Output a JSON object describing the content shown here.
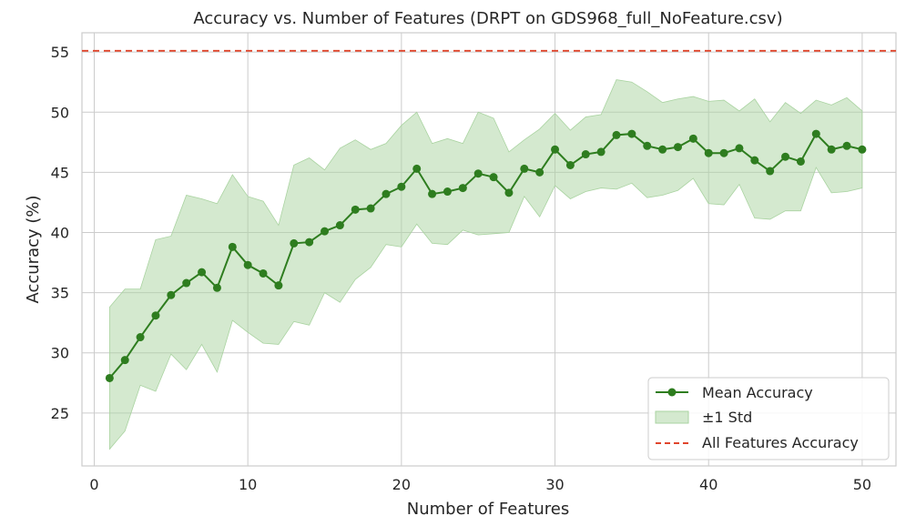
{
  "chart_data": {
    "type": "line",
    "title": "Accuracy vs. Number of Features (DRPT on GDS968_full_NoFeature.csv)",
    "xlabel": "Number of Features",
    "ylabel": "Accuracy (%)",
    "xlim": [
      -0.8,
      52.2
    ],
    "ylim": [
      20.6,
      56.6
    ],
    "x_ticks": [
      0,
      10,
      20,
      30,
      40,
      50
    ],
    "y_ticks": [
      25,
      30,
      35,
      40,
      45,
      50,
      55
    ],
    "grid": true,
    "legend_position": "bottom-right",
    "colors": {
      "mean": "#2e7d1f",
      "band": "#a9d3a0",
      "reference": "#e0452c",
      "grid": "#cccccc",
      "spine": "#cccccc"
    },
    "legend": {
      "mean_label": "Mean Accuracy",
      "band_label": "±1 Std",
      "reference_label": "All Features Accuracy"
    },
    "reference_line": {
      "y": 55.1
    },
    "x": [
      1,
      2,
      3,
      4,
      5,
      6,
      7,
      8,
      9,
      10,
      11,
      12,
      13,
      14,
      15,
      16,
      17,
      18,
      19,
      20,
      21,
      22,
      23,
      24,
      25,
      26,
      27,
      28,
      29,
      30,
      31,
      32,
      33,
      34,
      35,
      36,
      37,
      38,
      39,
      40,
      41,
      42,
      43,
      44,
      45,
      46,
      47,
      48,
      49,
      50
    ],
    "series": [
      {
        "name": "Mean Accuracy",
        "values": [
          27.9,
          29.4,
          31.3,
          33.1,
          34.8,
          35.8,
          36.7,
          35.4,
          38.8,
          37.3,
          36.6,
          35.6,
          39.1,
          39.2,
          40.1,
          40.6,
          41.9,
          42.0,
          43.2,
          43.8,
          45.3,
          43.2,
          43.4,
          43.7,
          44.9,
          44.6,
          43.3,
          45.3,
          45.0,
          46.9,
          45.6,
          46.5,
          46.7,
          48.1,
          48.2,
          47.2,
          46.9,
          47.1,
          47.8,
          46.6,
          46.6,
          47.0,
          46.0,
          45.1,
          46.3,
          45.9,
          48.2,
          46.9,
          47.2,
          46.9
        ],
        "lower": [
          22.0,
          23.5,
          27.3,
          26.8,
          29.9,
          28.6,
          30.7,
          28.4,
          32.7,
          31.7,
          30.8,
          30.7,
          32.6,
          32.3,
          35.0,
          34.2,
          36.1,
          37.1,
          39.0,
          38.8,
          40.7,
          39.1,
          39.0,
          40.2,
          39.8,
          39.9,
          40.0,
          43.0,
          41.3,
          43.9,
          42.8,
          43.4,
          43.7,
          43.6,
          44.1,
          42.9,
          43.1,
          43.5,
          44.5,
          42.4,
          42.3,
          44.0,
          41.2,
          41.1,
          41.8,
          41.8,
          45.4,
          43.3,
          43.4,
          43.7
        ],
        "upper": [
          33.8,
          35.3,
          35.3,
          39.4,
          39.7,
          43.1,
          42.8,
          42.4,
          44.8,
          43.0,
          42.6,
          40.6,
          45.6,
          46.2,
          45.2,
          47.0,
          47.7,
          46.9,
          47.4,
          48.9,
          50.0,
          47.4,
          47.8,
          47.4,
          50.0,
          49.5,
          46.7,
          47.7,
          48.6,
          49.9,
          48.5,
          49.6,
          49.8,
          52.7,
          52.5,
          51.7,
          50.8,
          51.1,
          51.3,
          50.9,
          51.0,
          50.1,
          51.1,
          49.2,
          50.8,
          49.9,
          51.0,
          50.6,
          51.2,
          50.1
        ]
      }
    ]
  }
}
